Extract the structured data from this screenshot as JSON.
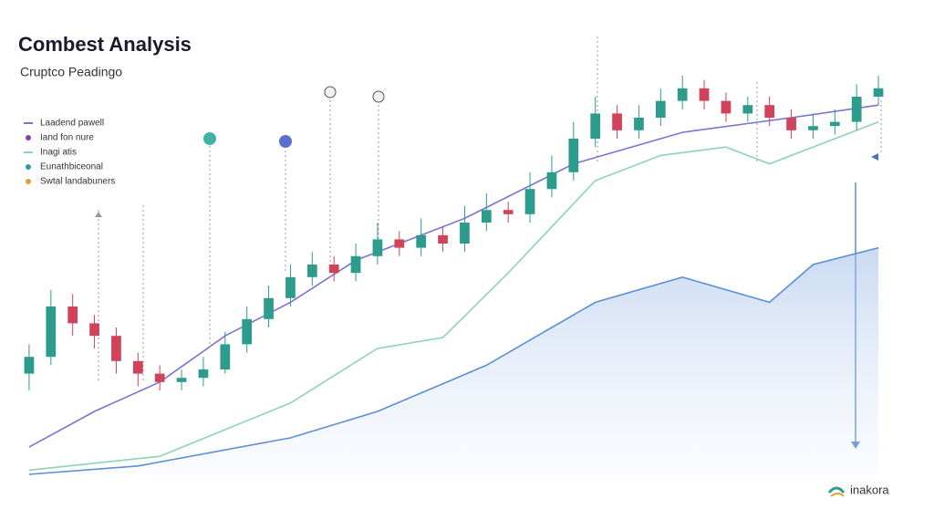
{
  "chart_data": {
    "type": "candlestick",
    "title": "Combest Analysis",
    "subtitle": "Cruptco Peadingo",
    "brand": "inakora",
    "xlim": [
      -0.5,
      39.5
    ],
    "ylim": [
      0,
      100
    ],
    "up_color": "#2e9c8c",
    "down_color": "#d0435a",
    "x": [
      0,
      1,
      2,
      3,
      4,
      5,
      6,
      7,
      8,
      9,
      10,
      11,
      12,
      13,
      14,
      15,
      16,
      17,
      18,
      19,
      20,
      21,
      22,
      23,
      24,
      25,
      26,
      27,
      28,
      29,
      30,
      31,
      32,
      33,
      34,
      35,
      36,
      37,
      38,
      39
    ],
    "open": [
      24,
      28,
      40,
      36,
      33,
      27,
      24,
      22,
      23,
      25,
      31,
      37,
      42,
      47,
      50,
      48,
      52,
      56,
      54,
      57,
      55,
      60,
      63,
      62,
      68,
      72,
      80,
      86,
      82,
      85,
      89,
      92,
      89,
      86,
      88,
      85,
      82,
      83,
      84,
      90
    ],
    "high": [
      31,
      44,
      43,
      38,
      35,
      29,
      26,
      25,
      28,
      34,
      40,
      45,
      50,
      53,
      52,
      55,
      60,
      58,
      61,
      59,
      64,
      67,
      65,
      72,
      76,
      84,
      90,
      88,
      88,
      92,
      95,
      94,
      91,
      90,
      90,
      87,
      86,
      87,
      93,
      95
    ],
    "low": [
      20,
      26,
      33,
      30,
      24,
      21,
      20,
      20,
      21,
      24,
      29,
      35,
      40,
      45,
      46,
      46,
      50,
      52,
      52,
      53,
      53,
      58,
      60,
      60,
      66,
      70,
      78,
      80,
      80,
      83,
      87,
      87,
      84,
      84,
      83,
      80,
      80,
      81,
      82,
      88
    ],
    "close": [
      28,
      40,
      36,
      33,
      27,
      24,
      22,
      23,
      25,
      31,
      37,
      42,
      47,
      50,
      48,
      52,
      56,
      54,
      57,
      55,
      60,
      63,
      62,
      68,
      72,
      80,
      86,
      82,
      85,
      89,
      92,
      89,
      86,
      88,
      85,
      82,
      83,
      84,
      90,
      92
    ],
    "lines": [
      {
        "color": "#7b72d6",
        "x": [
          0,
          3,
          6,
          9,
          12,
          15,
          20,
          25,
          30,
          35,
          39
        ],
        "values": [
          6.5,
          15,
          22,
          33,
          41,
          51,
          61,
          74,
          81.5,
          85,
          88
        ]
      },
      {
        "color": "#8fd3b4",
        "x": [
          0,
          6,
          12,
          16,
          19,
          22,
          26,
          29,
          32,
          34,
          36,
          39
        ],
        "values": [
          1,
          4.3,
          17,
          30,
          32.6,
          48,
          70,
          76,
          78,
          74,
          78,
          84
        ]
      },
      {
        "color": "#5b8fd6",
        "area": true,
        "x": [
          0,
          5,
          12,
          16,
          21,
          26,
          30,
          34,
          36,
          39
        ],
        "values": [
          0,
          2,
          8.7,
          15,
          26,
          41,
          47,
          41,
          50,
          54
        ]
      }
    ],
    "legend": [
      {
        "label": "Laadend pawell",
        "color": "#7b72d6",
        "marker": "line"
      },
      {
        "label": "Iand fon nure",
        "color": "#8a3fa8",
        "marker": "dot"
      },
      {
        "label": "Inagi atis",
        "color": "#8fd3b4",
        "marker": "line"
      },
      {
        "label": "Eunathbiceonal",
        "color": "#2e9cb0",
        "marker": "dot"
      },
      {
        "label": "Swtal landabuners",
        "color": "#e0a030",
        "marker": "dot"
      }
    ]
  }
}
